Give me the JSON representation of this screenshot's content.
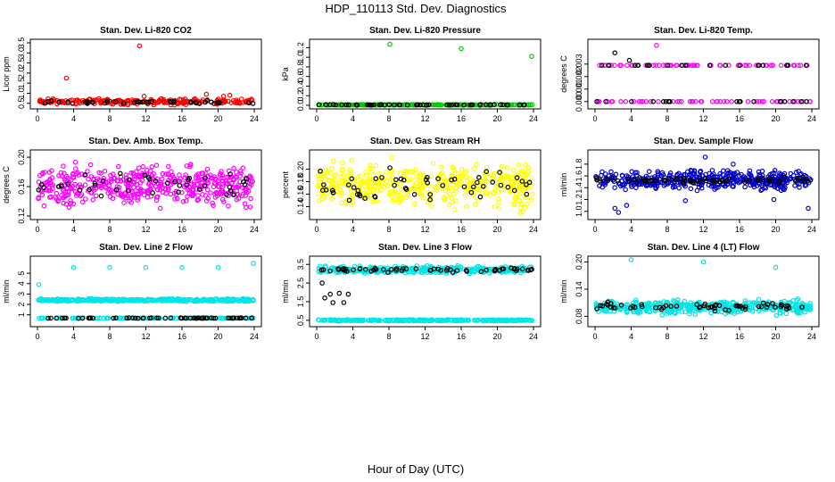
{
  "title": "HDP_110113  Std. Dev. Diagnostics",
  "xlabel": "Hour of Day (UTC)",
  "colors": {
    "red": "#ff0000",
    "green": "#00cc00",
    "magenta": "#ff00ff",
    "yellow": "#ffff00",
    "blue": "#0000cc",
    "cyan": "#00e5e5",
    "black": "#000000"
  },
  "chart_data": [
    {
      "type": "scatter",
      "title": "Stan. Dev. Li-820 CO2",
      "ylabel": "Licor ppm",
      "color": "red",
      "xlim": [
        0,
        24
      ],
      "ylim": [
        0.4,
        3.5
      ],
      "x_ticks": [
        "0",
        "4",
        "8",
        "12",
        "16",
        "20",
        "24"
      ],
      "y_ticks": [
        "0.5",
        "1.0",
        "1.5",
        "2.0",
        "2.5",
        "3.0",
        "3.5"
      ],
      "series": [
        {
          "color": "red",
          "band": [
            0.4,
            0.8
          ],
          "center": 0.55,
          "count": 220,
          "outliers": [
            [
              3.2,
              1.75
            ],
            [
              11.3,
              3.35
            ],
            [
              18.7,
              0.95
            ],
            [
              20.6,
              0.85
            ],
            [
              21.3,
              0.9
            ],
            [
              11.8,
              0.85
            ]
          ]
        },
        {
          "color": "black",
          "band": [
            0.45,
            0.65
          ],
          "center": 0.55,
          "count": 45,
          "outliers": []
        }
      ]
    },
    {
      "type": "scatter",
      "title": "Stan. Dev. Li-820 Pressure",
      "ylabel": "kPa",
      "color": "green",
      "xlim": [
        0,
        24
      ],
      "ylim": [
        0,
        1.3
      ],
      "x_ticks": [
        "0",
        "4",
        "8",
        "12",
        "16",
        "20",
        "24"
      ],
      "y_ticks": [
        "0.0",
        "0.2",
        "0.4",
        "0.6",
        "0.8",
        "1.0",
        "1.2"
      ],
      "series": [
        {
          "color": "green",
          "band": [
            0.0,
            0.02
          ],
          "center": 0.01,
          "count": 200,
          "outliers": [
            [
              8.1,
              1.27
            ],
            [
              16.0,
              1.18
            ],
            [
              23.8,
              1.02
            ]
          ]
        },
        {
          "color": "black",
          "band": [
            0.0,
            0.02
          ],
          "center": 0.01,
          "count": 60,
          "outliers": []
        }
      ]
    },
    {
      "type": "scatter",
      "title": "Stan. Dev. Li-820 Temp.",
      "ylabel": "degrees C",
      "color": "magenta",
      "xlim": [
        0,
        24
      ],
      "ylim": [
        -0.0003,
        0.0047
      ],
      "x_ticks": [
        "0",
        "4",
        "8",
        "12",
        "16",
        "20",
        "24"
      ],
      "y_ticks": [
        "0.000",
        "0.001",
        "0.002",
        "0.003"
      ],
      "series": [
        {
          "color": "magenta",
          "levels": [
            0.0,
            0.0029
          ],
          "count": 110,
          "outliers": [
            [
              6.8,
              0.0045
            ]
          ]
        },
        {
          "color": "black",
          "levels": [
            0.0,
            0.0029
          ],
          "count": 40,
          "outliers": [
            [
              2.2,
              0.0039
            ],
            [
              3.8,
              0.0033
            ]
          ]
        }
      ]
    },
    {
      "type": "scatter",
      "title": "Stan. Dev. Amb. Box Temp.",
      "ylabel": "degrees C",
      "color": "magenta",
      "xlim": [
        0,
        24
      ],
      "ylim": [
        0.12,
        0.205
      ],
      "x_ticks": [
        "0",
        "4",
        "8",
        "12",
        "16",
        "20",
        "24"
      ],
      "y_ticks": [
        "0.12",
        "0.16",
        "0.20"
      ],
      "series": [
        {
          "color": "magenta",
          "band": [
            0.125,
            0.2
          ],
          "center": 0.16,
          "count": 460,
          "outliers": []
        },
        {
          "color": "black",
          "band": [
            0.14,
            0.185
          ],
          "center": 0.163,
          "count": 40,
          "outliers": []
        }
      ]
    },
    {
      "type": "scatter",
      "title": "Stan. Dev. Gas Stream RH",
      "ylabel": "percent",
      "color": "yellow",
      "xlim": [
        0,
        24
      ],
      "ylim": [
        0.125,
        0.225
      ],
      "x_ticks": [
        "0",
        "4",
        "8",
        "12",
        "16",
        "20",
        "24"
      ],
      "y_ticks": [
        "0.14",
        "0.16",
        "0.18",
        "0.20"
      ],
      "series": [
        {
          "color": "yellow",
          "band": [
            0.128,
            0.222
          ],
          "center": 0.175,
          "count": 450,
          "outliers": []
        },
        {
          "color": "black",
          "band": [
            0.14,
            0.21
          ],
          "center": 0.172,
          "count": 55,
          "outliers": []
        }
      ]
    },
    {
      "type": "scatter",
      "title": "Stan. Dev. Sample Flow",
      "ylabel": "ml/min",
      "color": "blue",
      "xlim": [
        0,
        24
      ],
      "ylim": [
        0.92,
        1.98
      ],
      "x_ticks": [
        "0",
        "4",
        "8",
        "12",
        "16",
        "20",
        "24"
      ],
      "y_ticks": [
        "1.0",
        "1.2",
        "1.4",
        "1.6",
        "1.8"
      ],
      "series": [
        {
          "color": "blue",
          "band": [
            1.3,
            1.75
          ],
          "center": 1.52,
          "count": 430,
          "outliers": [
            [
              2.6,
              0.98
            ],
            [
              2.2,
              1.05
            ],
            [
              3.5,
              1.1
            ],
            [
              12.2,
              1.92
            ],
            [
              15.3,
              1.8
            ],
            [
              23.6,
              1.05
            ],
            [
              10.0,
              1.18
            ],
            [
              19.8,
              1.2
            ]
          ]
        },
        {
          "color": "black",
          "band": [
            1.45,
            1.6
          ],
          "center": 1.52,
          "count": 70,
          "outliers": []
        }
      ]
    },
    {
      "type": "scatter",
      "title": "Stan. Dev. Line 2 Flow",
      "ylabel": "ml/min",
      "color": "cyan",
      "xlim": [
        0,
        24
      ],
      "ylim": [
        0.2,
        6.3
      ],
      "x_ticks": [
        "0",
        "4",
        "8",
        "12",
        "16",
        "20",
        "24"
      ],
      "y_ticks": [
        "1",
        "2",
        "3",
        "4",
        "5"
      ],
      "series": [
        {
          "color": "cyan",
          "band": [
            2.25,
            2.6
          ],
          "center": 2.4,
          "count": 380,
          "outliers": [
            [
              0.15,
              3.9
            ],
            [
              4.0,
              5.55
            ],
            [
              8.0,
              5.55
            ],
            [
              12.0,
              5.55
            ],
            [
              16.0,
              5.55
            ],
            [
              20.0,
              5.55
            ],
            [
              23.9,
              5.95
            ]
          ]
        },
        {
          "color": "cyan",
          "band": [
            0.65,
            0.72
          ],
          "center": 0.68,
          "count": 120,
          "outliers": []
        },
        {
          "color": "black",
          "band": [
            0.65,
            0.72
          ],
          "center": 0.68,
          "count": 60,
          "outliers": []
        }
      ]
    },
    {
      "type": "scatter",
      "title": "Stan. Dev. Line 3 Flow",
      "ylabel": "ml/min",
      "color": "cyan",
      "xlim": [
        0,
        24
      ],
      "ylim": [
        0.35,
        3.75
      ],
      "x_ticks": [
        "0",
        "4",
        "8",
        "12",
        "16",
        "20",
        "24"
      ],
      "y_ticks": [
        "0.5",
        "1.5",
        "2.5",
        "3.5"
      ],
      "series": [
        {
          "color": "cyan",
          "band": [
            2.95,
            3.5
          ],
          "center": 3.2,
          "count": 330,
          "outliers": []
        },
        {
          "color": "cyan",
          "band": [
            0.45,
            0.56
          ],
          "center": 0.5,
          "count": 260,
          "outliers": []
        },
        {
          "color": "black",
          "band": [
            3.05,
            3.35
          ],
          "center": 3.2,
          "count": 60,
          "outliers": [
            [
              0.6,
              2.5
            ],
            [
              1.5,
              1.9
            ],
            [
              2.5,
              1.95
            ],
            [
              3.5,
              1.9
            ],
            [
              0.9,
              1.7
            ],
            [
              1.8,
              1.45
            ],
            [
              3.0,
              1.45
            ]
          ]
        }
      ]
    },
    {
      "type": "scatter",
      "title": "Stan. Dev. Line 4 (LT) Flow",
      "ylabel": "ml/min",
      "color": "cyan",
      "xlim": [
        0,
        24
      ],
      "ylim": [
        0.065,
        0.205
      ],
      "x_ticks": [
        "0",
        "4",
        "8",
        "12",
        "16",
        "20",
        "24"
      ],
      "y_ticks": [
        "0.08",
        "0.14",
        "0.20"
      ],
      "series": [
        {
          "color": "cyan",
          "band": [
            0.08,
            0.12
          ],
          "center": 0.1,
          "count": 440,
          "outliers": [
            [
              4.0,
              0.205
            ],
            [
              12.0,
              0.2
            ],
            [
              20.0,
              0.188
            ]
          ]
        },
        {
          "color": "black",
          "band": [
            0.09,
            0.115
          ],
          "center": 0.1,
          "count": 60,
          "outliers": []
        }
      ]
    }
  ]
}
